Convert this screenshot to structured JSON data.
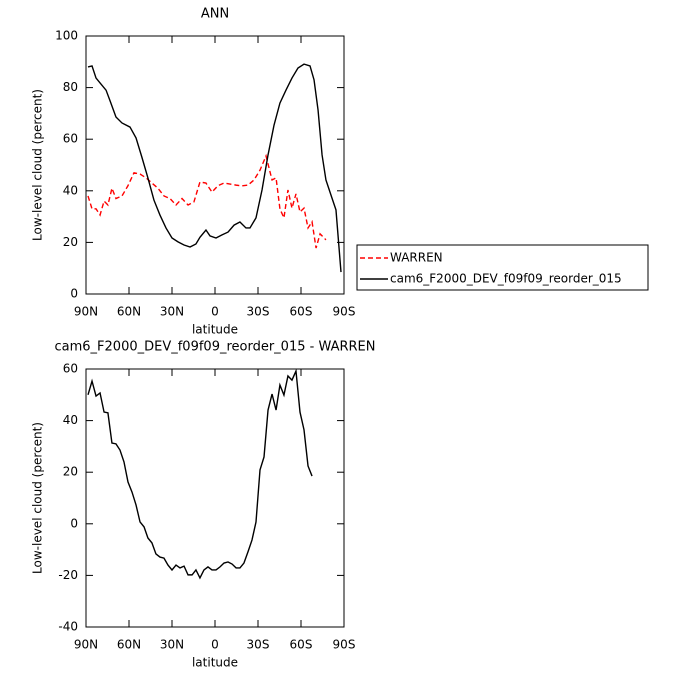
{
  "chart_data": [
    {
      "type": "line",
      "title": "ANN",
      "x_label": "latitude",
      "y_label": "Low-level cloud (percent)",
      "xlim": [
        90,
        -90
      ],
      "xticks": [
        {
          "value": 90,
          "label": "90N"
        },
        {
          "value": 60,
          "label": "60N"
        },
        {
          "value": 30,
          "label": "30N"
        },
        0,
        {
          "value": -30,
          "label": "30S"
        },
        {
          "value": -60,
          "label": "60S"
        },
        {
          "value": -90,
          "label": "90S"
        }
      ],
      "ylim": [
        0,
        100
      ],
      "yticks": [
        0,
        20,
        40,
        60,
        80,
        100
      ],
      "legend": "right",
      "series": [
        {
          "name": "WARREN",
          "color": "#ff0000",
          "linestyle": "dashed",
          "x": [
            88.6,
            85.8,
            83.0,
            80.2,
            77.4,
            74.7,
            71.9,
            69.1,
            64.9,
            60.7,
            56.5,
            52.3,
            48.1,
            44.0,
            39.8,
            35.6,
            31.4,
            27.2,
            23.0,
            18.8,
            14.7,
            10.5,
            6.3,
            2.1,
            -2.1,
            -6.3,
            -10.5,
            -14.7,
            -18.8,
            -23.0,
            -27.2,
            -31.4,
            -35.6,
            -39.8,
            -42.6,
            -45.3,
            -48.1,
            -50.9,
            -53.7,
            -56.5,
            -59.3,
            -62.1,
            -64.9,
            -67.7,
            -70.5,
            -73.3,
            -77.4
          ],
          "values": [
            38,
            33,
            33,
            30.6,
            36,
            34.5,
            41,
            37,
            38,
            42,
            47,
            46.5,
            45,
            43,
            41,
            38,
            37,
            34.5,
            37,
            34.5,
            35.7,
            43.4,
            43,
            39.5,
            42,
            43,
            42.6,
            42.2,
            41.9,
            42.2,
            44.2,
            48,
            53.5,
            44.2,
            45,
            33,
            29.5,
            40.3,
            33.3,
            38.8,
            31.8,
            33.3,
            25.6,
            28,
            17.8,
            23.3,
            21
          ]
        },
        {
          "name": "cam6_F2000_DEV_f09f09_reorder_015",
          "color": "#000000",
          "linestyle": "solid",
          "x": [
            88.6,
            85.8,
            83.0,
            80.2,
            76.0,
            73.3,
            69.1,
            64.9,
            59.3,
            55.1,
            51.0,
            46.8,
            42.6,
            38.4,
            34.2,
            30.0,
            25.8,
            21.6,
            17.4,
            13.3,
            10.5,
            6.3,
            3.5,
            -0.7,
            -4.9,
            -9.1,
            -13.3,
            -17.4,
            -21.6,
            -24.4,
            -28.6,
            -32.8,
            -37.0,
            -41.2,
            -45.3,
            -49.5,
            -53.7,
            -57.9,
            -62.1,
            -66.3,
            -69.1,
            -71.9,
            -74.7,
            -77.4,
            -81.6,
            -84.4,
            -87.9
          ],
          "values": [
            88,
            88.4,
            83.7,
            81.8,
            79,
            75,
            68.6,
            66.3,
            64.7,
            60.5,
            53,
            45,
            36.4,
            30.6,
            25.6,
            21.7,
            20.2,
            19,
            18.2,
            19.4,
            22,
            24.8,
            22.5,
            21.7,
            22.9,
            24,
            26.7,
            27.9,
            25.6,
            25.6,
            29.5,
            40.3,
            53.9,
            65.5,
            74,
            79,
            83.7,
            87.6,
            89.1,
            88.4,
            83,
            71.3,
            53.9,
            44.2,
            37.2,
            32.6,
            8.5
          ]
        }
      ]
    },
    {
      "type": "line",
      "title": "cam6_F2000_DEV_f09f09_reorder_015 - WARREN",
      "x_label": "latitude",
      "y_label": "Low-level cloud (percent)",
      "xlim": [
        90,
        -90
      ],
      "xticks": [
        {
          "value": 90,
          "label": "90N"
        },
        {
          "value": 60,
          "label": "60N"
        },
        {
          "value": 30,
          "label": "30N"
        },
        0,
        {
          "value": -30,
          "label": "30S"
        },
        {
          "value": -60,
          "label": "60S"
        },
        {
          "value": -90,
          "label": "90S"
        }
      ],
      "ylim": [
        -40,
        60
      ],
      "yticks": [
        -40,
        -20,
        0,
        20,
        40,
        60
      ],
      "series": [
        {
          "color": "#000000",
          "linestyle": "solid",
          "x": [
            88.6,
            85.8,
            83.0,
            80.2,
            77.4,
            74.7,
            71.9,
            69.1,
            66.3,
            63.5,
            60.7,
            57.9,
            55.1,
            52.3,
            49.5,
            46.8,
            44.0,
            41.2,
            38.4,
            35.6,
            32.8,
            30.0,
            27.2,
            24.4,
            21.6,
            18.8,
            16.0,
            13.3,
            10.5,
            7.7,
            4.9,
            2.1,
            -0.7,
            -3.5,
            -6.3,
            -9.1,
            -11.9,
            -14.7,
            -17.4,
            -20.2,
            -23.0,
            -25.8,
            -28.6,
            -31.4,
            -34.2,
            -37.0,
            -39.8,
            -42.6,
            -45.3,
            -48.1,
            -50.9,
            -53.7,
            -56.5,
            -59.3,
            -62.1,
            -64.9,
            -67.7
          ],
          "values": [
            50,
            55.3,
            49.5,
            50.7,
            43.3,
            43,
            31.3,
            31,
            28.6,
            24,
            16.2,
            12.3,
            7.3,
            0.7,
            -1.2,
            -5.5,
            -7.4,
            -11.7,
            -12.9,
            -13.3,
            -16,
            -17.9,
            -16,
            -17.1,
            -16.4,
            -19.8,
            -19.8,
            -17.9,
            -21,
            -17.9,
            -16.7,
            -17.9,
            -17.9,
            -16.7,
            -15.2,
            -14.8,
            -15.6,
            -17.1,
            -17.1,
            -15.2,
            -10.9,
            -6.3,
            0.7,
            20.9,
            25.9,
            44.1,
            50.3,
            44.1,
            53.8,
            49.9,
            57.3,
            55.7,
            59.2,
            43.3,
            36.4,
            22.4,
            18.5
          ]
        }
      ]
    }
  ]
}
